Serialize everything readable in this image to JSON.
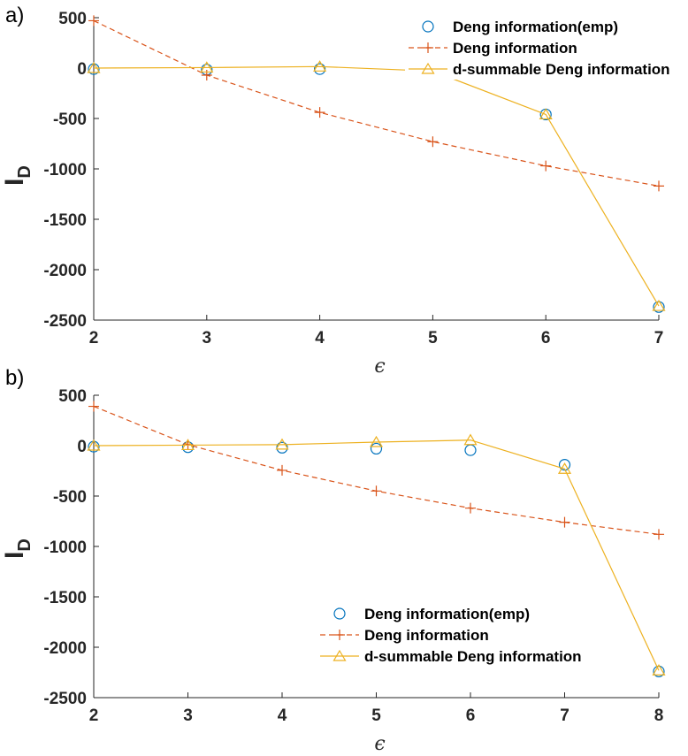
{
  "colors": {
    "emp": "#0072BD",
    "deng": "#D95319",
    "dsum": "#EDB120",
    "axis": "#262626"
  },
  "chart_data": [
    {
      "panel_label": "a)",
      "type": "line",
      "xlabel": "ϵ",
      "ylabel": "I",
      "ylabel_sub": "D",
      "xlim": [
        2,
        7
      ],
      "ylim": [
        -2500,
        500
      ],
      "xticks": [
        2,
        3,
        4,
        5,
        6,
        7
      ],
      "yticks": [
        500,
        0,
        -500,
        -1000,
        -1500,
        -2000,
        -2500
      ],
      "legend_position": "top-right",
      "series": [
        {
          "name": "Deng information(emp)",
          "style": "markers-circle",
          "x": [
            2,
            3,
            4,
            6,
            7
          ],
          "values": [
            -10,
            -15,
            -10,
            -460,
            -2370
          ]
        },
        {
          "name": "Deng information",
          "style": "dashed-plus",
          "x": [
            2,
            3,
            4,
            5,
            6,
            7
          ],
          "values": [
            470,
            -70,
            -440,
            -730,
            -970,
            -1170
          ]
        },
        {
          "name": "d-summable Deng information",
          "style": "solid-triangle",
          "x": [
            2,
            3,
            4,
            5,
            6,
            7
          ],
          "values": [
            0,
            5,
            15,
            -30,
            -460,
            -2360
          ]
        }
      ]
    },
    {
      "panel_label": "b)",
      "type": "line",
      "xlabel": "ϵ",
      "ylabel": "I",
      "ylabel_sub": "D",
      "xlim": [
        2,
        8
      ],
      "ylim": [
        -2500,
        500
      ],
      "xticks": [
        2,
        3,
        4,
        5,
        6,
        7,
        8
      ],
      "yticks": [
        500,
        0,
        -500,
        -1000,
        -1500,
        -2000,
        -2500
      ],
      "legend_position": "bottom-center",
      "series": [
        {
          "name": "Deng information(emp)",
          "style": "markers-circle",
          "x": [
            2,
            3,
            4,
            5,
            6,
            7,
            8
          ],
          "values": [
            -10,
            -15,
            -20,
            -30,
            -45,
            -190,
            -2240
          ]
        },
        {
          "name": "Deng information",
          "style": "dashed-plus",
          "x": [
            2,
            3,
            4,
            5,
            6,
            7,
            8
          ],
          "values": [
            390,
            10,
            -245,
            -450,
            -620,
            -760,
            -880
          ]
        },
        {
          "name": "d-summable Deng information",
          "style": "solid-triangle",
          "x": [
            2,
            3,
            4,
            5,
            6,
            7,
            8
          ],
          "values": [
            0,
            5,
            10,
            35,
            55,
            -230,
            -2230
          ]
        }
      ]
    }
  ]
}
